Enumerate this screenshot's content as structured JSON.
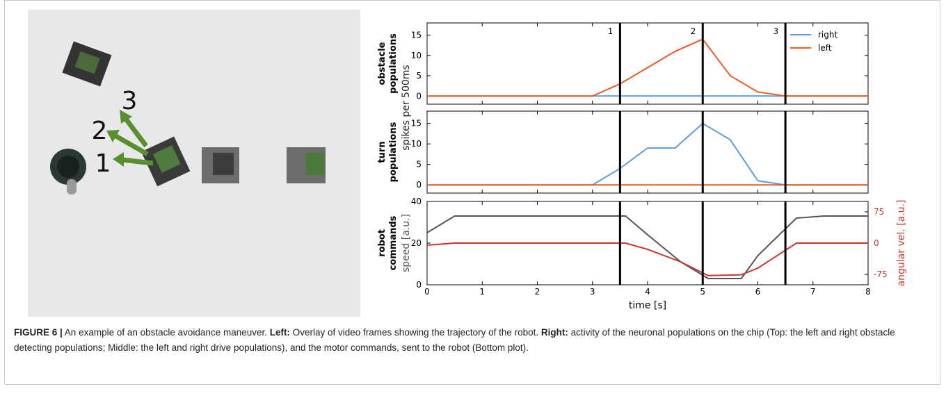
{
  "figure": {
    "photo_labels": [
      "1",
      "2",
      "3"
    ],
    "caption": [
      "FIGURE 6 |",
      " An example of an obstacle avoidance maneuver.  ",
      "Left:",
      " Overlay of video frames showing the trajectory of the robot. ",
      "Right:",
      " activity of the neuronal populations on the chip (Top: the left and right obstacle detecting populations; Middle: the left and right drive populations), and the motor commands, sent to the robot (Bottom plot)."
    ]
  },
  "chart_data": [
    {
      "type": "line",
      "ylabel_bold": [
        "obstacle",
        "populations"
      ],
      "ylabel": "spikes per 500ms",
      "x": [
        0,
        0.5,
        1,
        1.5,
        2,
        2.5,
        3,
        3.5,
        4,
        4.5,
        5,
        5.5,
        6,
        6.5,
        7,
        7.5,
        8
      ],
      "series": [
        {
          "name": "right",
          "color": "#5b9de0",
          "values": [
            0,
            0,
            0,
            0,
            0,
            0,
            0,
            0,
            0,
            0,
            0,
            0,
            0,
            0,
            0,
            0,
            0
          ]
        },
        {
          "name": "left",
          "color": "#ee5a24",
          "values": [
            0,
            0,
            0,
            0,
            0,
            0,
            0,
            3,
            7,
            11,
            14,
            5,
            1,
            0,
            0,
            0,
            0
          ]
        }
      ],
      "xlim": [
        0,
        8
      ],
      "xticks": [
        0,
        1,
        2,
        3,
        4,
        5,
        6,
        7,
        8
      ],
      "ylim": [
        -2,
        18
      ],
      "yticks": [
        0,
        5,
        10,
        15
      ],
      "vlines": [
        3.5,
        5,
        6.5
      ],
      "vline_labels": [
        "1",
        "2",
        "3"
      ],
      "legend": "upper right"
    },
    {
      "type": "line",
      "ylabel_bold": [
        "turn",
        "populations"
      ],
      "x": [
        0,
        0.5,
        1,
        1.5,
        2,
        2.5,
        3,
        3.5,
        4,
        4.5,
        5,
        5.5,
        6,
        6.5,
        7,
        7.5,
        8
      ],
      "series": [
        {
          "color": "#5b9de0",
          "values": [
            0,
            0,
            0,
            0,
            0,
            0,
            0,
            4,
            9,
            9,
            15,
            11,
            1,
            0,
            0,
            0,
            0
          ]
        },
        {
          "color": "#ee5a24",
          "values": [
            0,
            0,
            0,
            0,
            0,
            0,
            0,
            0,
            0,
            0,
            0,
            0,
            0,
            0,
            0,
            0,
            0
          ]
        }
      ],
      "xlim": [
        0,
        8
      ],
      "xticks": [
        0,
        1,
        2,
        3,
        4,
        5,
        6,
        7,
        8
      ],
      "ylim": [
        -2,
        18
      ],
      "yticks": [
        0,
        5,
        10,
        15
      ],
      "vlines": [
        3.5,
        5,
        6.5
      ]
    },
    {
      "type": "line",
      "ylabel_bold": [
        "robot",
        "commands"
      ],
      "ylabel": "speed [a.u.]",
      "y2label": "angular vel. [a.u.]",
      "xlabel": "time [s]",
      "x": [
        0,
        0.5,
        3.6,
        4,
        4.6,
        5.1,
        5.7,
        6,
        6.7,
        7.2,
        8
      ],
      "series": [
        {
          "color": "#555555",
          "values": [
            25,
            33,
            33,
            24,
            11,
            3,
            3,
            14,
            32,
            33,
            33
          ]
        },
        {
          "color": "#c8372d",
          "axis": "y2",
          "values": [
            -5,
            0,
            0,
            -15,
            -45,
            -78,
            -76,
            -60,
            0,
            0,
            0
          ]
        }
      ],
      "xlim": [
        0,
        8
      ],
      "xticks": [
        0,
        1,
        2,
        3,
        4,
        5,
        6,
        7,
        8
      ],
      "ylim": [
        0,
        40
      ],
      "yticks": [
        0,
        20,
        40
      ],
      "y2lim": [
        -100,
        100
      ],
      "y2ticks": [
        -75,
        0,
        75
      ],
      "vlines": [
        3.5,
        5,
        6.5
      ]
    }
  ]
}
